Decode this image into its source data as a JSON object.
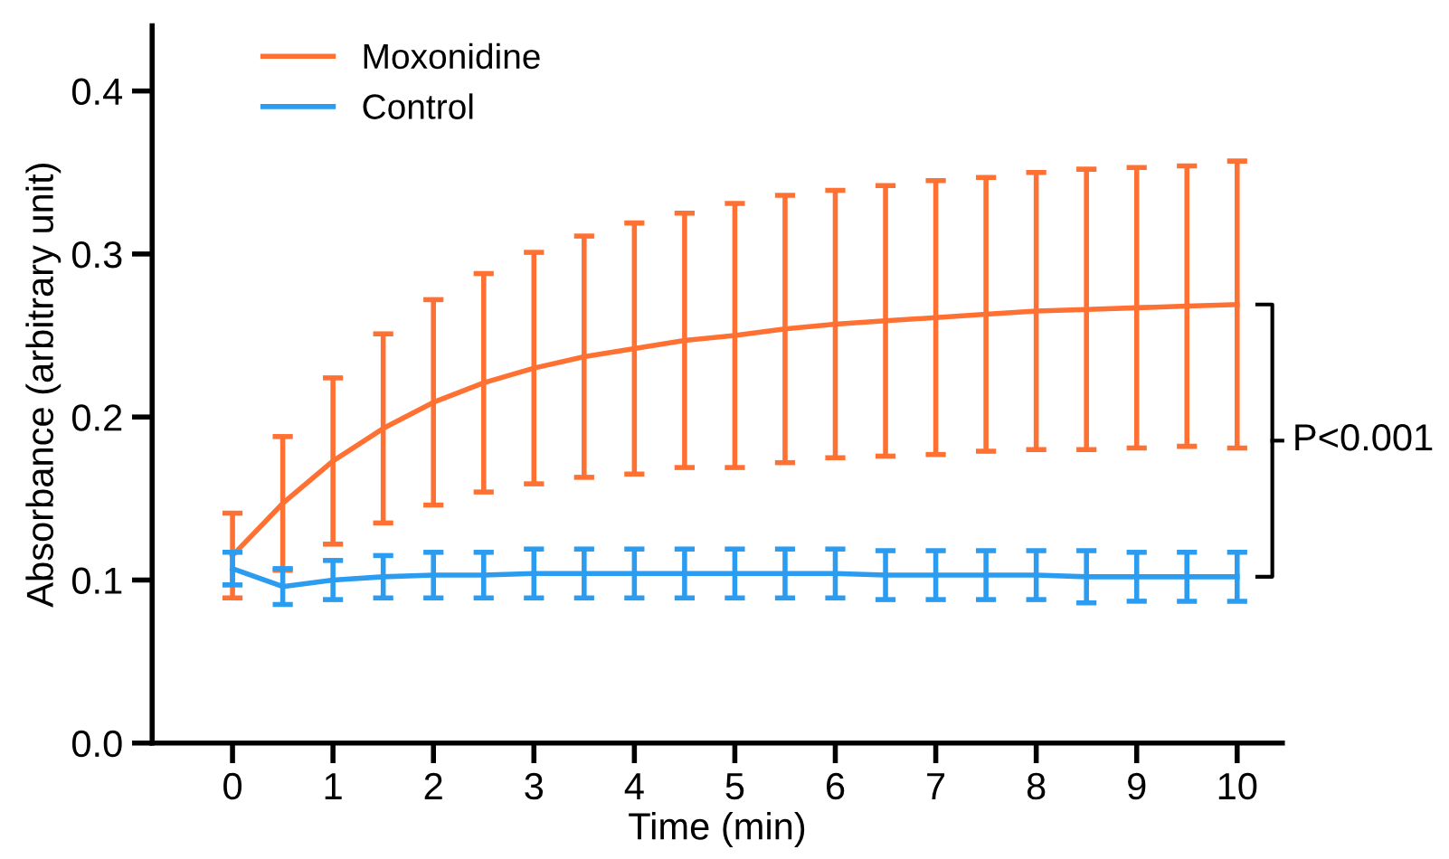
{
  "chart_data": {
    "type": "line",
    "xlabel": "Time (min)",
    "ylabel": "Absorbance (arbitrary unit)",
    "x": [
      0,
      0.5,
      1,
      1.5,
      2,
      2.5,
      3,
      3.5,
      4,
      4.5,
      5,
      5.5,
      6,
      6.5,
      7,
      7.5,
      8,
      8.5,
      9,
      9.5,
      10
    ],
    "series": [
      {
        "name": "Moxonidine",
        "color": "#ff7033",
        "values": [
          0.115,
          0.147,
          0.173,
          0.193,
          0.209,
          0.221,
          0.23,
          0.237,
          0.242,
          0.247,
          0.25,
          0.254,
          0.257,
          0.259,
          0.261,
          0.263,
          0.265,
          0.266,
          0.267,
          0.268,
          0.269
        ],
        "errors": [
          0.026,
          0.041,
          0.051,
          0.058,
          0.063,
          0.067,
          0.071,
          0.074,
          0.077,
          0.078,
          0.081,
          0.082,
          0.082,
          0.083,
          0.084,
          0.084,
          0.085,
          0.086,
          0.086,
          0.086,
          0.088
        ]
      },
      {
        "name": "Control",
        "color": "#2b9cf0",
        "values": [
          0.107,
          0.096,
          0.1,
          0.102,
          0.103,
          0.103,
          0.104,
          0.104,
          0.104,
          0.104,
          0.104,
          0.104,
          0.104,
          0.103,
          0.103,
          0.103,
          0.103,
          0.102,
          0.102,
          0.102,
          0.102
        ],
        "errors": [
          0.01,
          0.011,
          0.012,
          0.013,
          0.014,
          0.014,
          0.015,
          0.015,
          0.015,
          0.015,
          0.015,
          0.015,
          0.015,
          0.015,
          0.015,
          0.015,
          0.015,
          0.016,
          0.015,
          0.015,
          0.015
        ]
      }
    ],
    "xlim": [
      -0.8,
      10.45
    ],
    "xticks": [
      0,
      1,
      2,
      3,
      4,
      5,
      6,
      7,
      8,
      9,
      10
    ],
    "ylim": [
      0,
      0.44
    ],
    "yticks": [
      {
        "value": 0,
        "label": "0.0"
      },
      0.1,
      0.2,
      0.3,
      0.4
    ],
    "annotations": [
      "P<0.001"
    ],
    "legend": "top left",
    "grid": false,
    "marker": "none",
    "line_style": "solid"
  }
}
